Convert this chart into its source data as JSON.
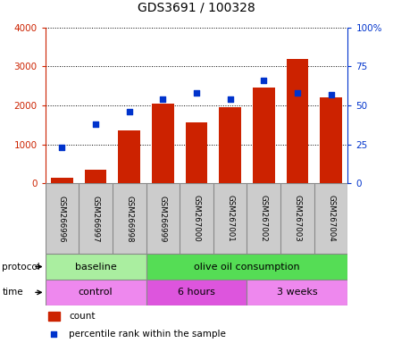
{
  "title": "GDS3691 / 100328",
  "samples": [
    "GSM266996",
    "GSM266997",
    "GSM266998",
    "GSM266999",
    "GSM267000",
    "GSM267001",
    "GSM267002",
    "GSM267003",
    "GSM267004"
  ],
  "count_values": [
    150,
    350,
    1350,
    2050,
    1575,
    1950,
    2450,
    3200,
    2200
  ],
  "percentile_values": [
    23,
    38,
    46,
    54,
    58,
    54,
    66,
    58,
    57
  ],
  "bar_color": "#cc2200",
  "dot_color": "#0033cc",
  "left_ylim": [
    0,
    4000
  ],
  "right_ylim": [
    0,
    100
  ],
  "left_yticks": [
    0,
    1000,
    2000,
    3000,
    4000
  ],
  "right_yticks": [
    0,
    25,
    50,
    75,
    100
  ],
  "left_yticklabels": [
    "0",
    "1000",
    "2000",
    "3000",
    "4000"
  ],
  "right_yticklabels": [
    "0",
    "25",
    "50",
    "75",
    "100%"
  ],
  "protocol_groups": [
    {
      "label": "baseline",
      "start": 0,
      "end": 3,
      "color": "#aaeea0"
    },
    {
      "label": "olive oil consumption",
      "start": 3,
      "end": 9,
      "color": "#55dd55"
    }
  ],
  "time_groups": [
    {
      "label": "control",
      "start": 0,
      "end": 3,
      "color": "#ee88ee"
    },
    {
      "label": "6 hours",
      "start": 3,
      "end": 6,
      "color": "#dd55dd"
    },
    {
      "label": "3 weeks",
      "start": 6,
      "end": 9,
      "color": "#ee88ee"
    }
  ],
  "legend_count_label": "count",
  "legend_percentile_label": "percentile rank within the sample",
  "left_axis_color": "#cc2200",
  "right_axis_color": "#0033cc",
  "background_color": "#ffffff",
  "xtick_bg_color": "#cccccc",
  "xtick_border_color": "#888888",
  "row_border_color": "#888888"
}
